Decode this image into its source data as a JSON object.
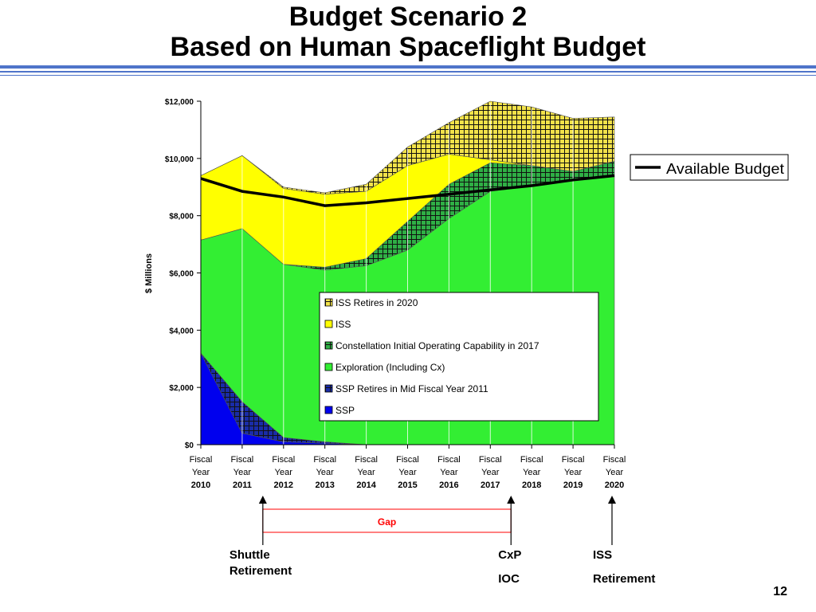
{
  "slide": {
    "title_line1": "Budget Scenario 2",
    "title_line2": "Based on Human Spaceflight Budget",
    "page_number": "12"
  },
  "colors": {
    "ssp": "#0000ee",
    "ssp_retires": "#1a2ca8",
    "exploration": "#33ee33",
    "cx_ioc": "#2faf45",
    "iss": "#ffff00",
    "iss_retires": "#f2e24a",
    "available_budget": "#000000",
    "gap": "#ff0000",
    "title_bar": "#4f74c9"
  },
  "chart_data": {
    "type": "area",
    "stacked": true,
    "title": "",
    "xlabel": "",
    "ylabel": "$ Millions",
    "ylim": [
      0,
      12000
    ],
    "yticks": [
      "$0",
      "$2,000",
      "$4,000",
      "$6,000",
      "$8,000",
      "$10,000",
      "$12,000"
    ],
    "categories": [
      [
        "Fiscal",
        "Year",
        "2010"
      ],
      [
        "Fiscal",
        "Year",
        "2011"
      ],
      [
        "Fiscal",
        "Year",
        "2012"
      ],
      [
        "Fiscal",
        "Year",
        "2013"
      ],
      [
        "Fiscal",
        "Year",
        "2014"
      ],
      [
        "Fiscal",
        "Year",
        "2015"
      ],
      [
        "Fiscal",
        "Year",
        "2016"
      ],
      [
        "Fiscal",
        "Year",
        "2017"
      ],
      [
        "Fiscal",
        "Year",
        "2018"
      ],
      [
        "Fiscal",
        "Year",
        "2019"
      ],
      [
        "Fiscal",
        "Year",
        "2020"
      ]
    ],
    "series": [
      {
        "name": "SSP",
        "color_key": "ssp",
        "pattern": "solid",
        "values": [
          3200,
          400,
          100,
          50,
          0,
          0,
          0,
          0,
          0,
          0,
          0
        ]
      },
      {
        "name": "SSP Retires in Mid Fiscal Year 2011",
        "color_key": "ssp_retires",
        "pattern": "check",
        "values": [
          0,
          1100,
          150,
          50,
          0,
          0,
          0,
          0,
          0,
          0,
          0
        ]
      },
      {
        "name": "Exploration (Including Cx)",
        "color_key": "exploration",
        "pattern": "solid",
        "values": [
          3950,
          6050,
          6050,
          6000,
          6250,
          6800,
          7900,
          8850,
          9050,
          9250,
          9400
        ]
      },
      {
        "name": "Constellation Initial Operating Capability in 2017",
        "color_key": "cx_ioc",
        "pattern": "check",
        "values": [
          0,
          0,
          0,
          100,
          250,
          1000,
          1200,
          1000,
          700,
          300,
          500
        ]
      },
      {
        "name": "ISS",
        "color_key": "iss",
        "pattern": "solid",
        "values": [
          2250,
          2550,
          2650,
          2550,
          2350,
          1950,
          1050,
          100,
          0,
          0,
          0
        ]
      },
      {
        "name": "ISS Retires in 2020",
        "color_key": "iss_retires",
        "pattern": "check",
        "values": [
          0,
          0,
          50,
          50,
          250,
          650,
          1100,
          2050,
          2050,
          1850,
          1550
        ]
      }
    ],
    "line_series": {
      "name": "Available Budget",
      "values": [
        9300,
        8850,
        8650,
        8350,
        8450,
        8600,
        8750,
        8900,
        9050,
        9250,
        9400
      ]
    },
    "legend": {
      "placement": "center-right",
      "line_legend_placement": "right"
    },
    "gap": {
      "label": "Gap",
      "from_index": 1.5,
      "to_index": 7.5
    },
    "markers": [
      {
        "at_index": 1.5,
        "label_lines": [
          "Shuttle",
          "Retirement"
        ]
      },
      {
        "at_index": 7.5,
        "label_lines": [
          "CxP",
          "IOC"
        ]
      },
      {
        "at_index": 10,
        "label_lines": [
          "ISS",
          "Retirement"
        ]
      }
    ]
  }
}
